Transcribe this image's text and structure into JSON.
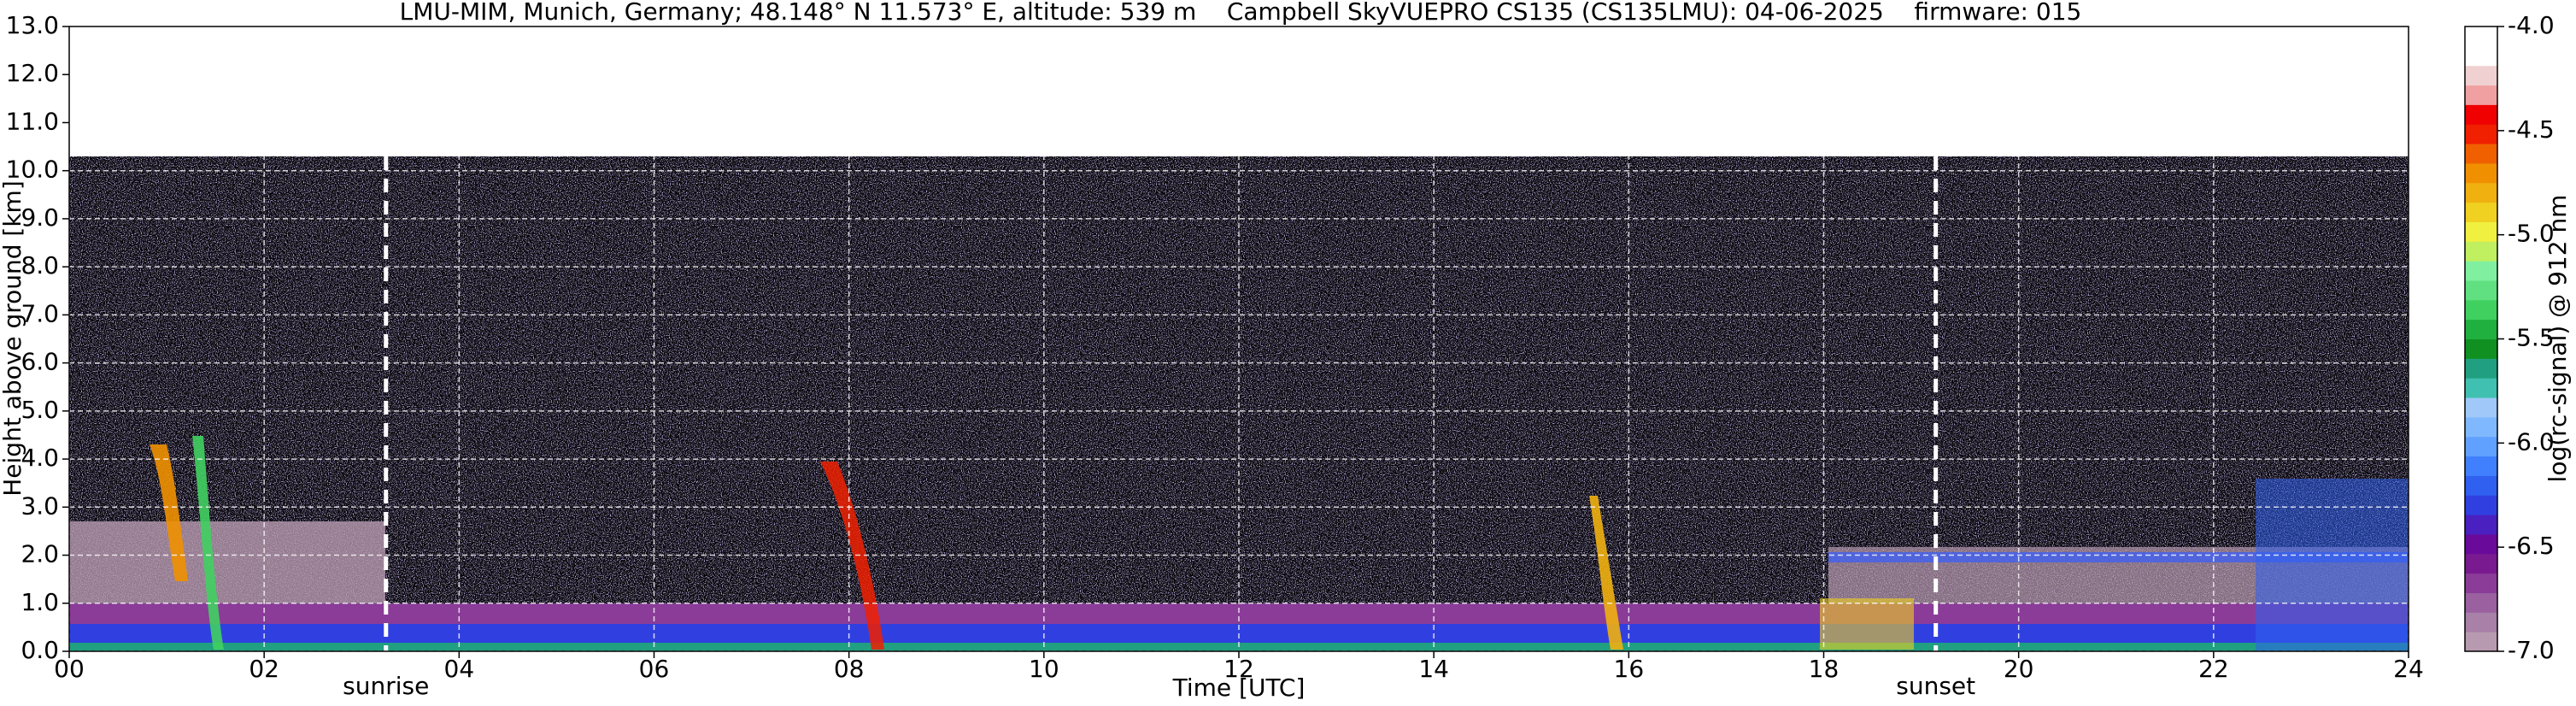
{
  "chart_data": {
    "type": "heatmap",
    "title": "LMU-MIM, Munich, Germany; 48.148° N 11.573° E, altitude: 539 m    Campbell SkyVUEPRO CS135 (CS135LMU): 04-06-2025    firmware: 015",
    "x_label": "Time [UTC]",
    "y_label": "Height above ground [km]",
    "xlim": [
      0,
      24
    ],
    "xticks": [
      {
        "value": 0,
        "label": "00"
      },
      {
        "value": 2,
        "label": "02"
      },
      {
        "value": 4,
        "label": "04"
      },
      {
        "value": 6,
        "label": "06"
      },
      {
        "value": 8,
        "label": "08"
      },
      {
        "value": 10,
        "label": "10"
      },
      {
        "value": 12,
        "label": "12"
      },
      {
        "value": 14,
        "label": "14"
      },
      {
        "value": 16,
        "label": "16"
      },
      {
        "value": 18,
        "label": "18"
      },
      {
        "value": 20,
        "label": "20"
      },
      {
        "value": 22,
        "label": "22"
      },
      {
        "value": 24,
        "label": "24"
      }
    ],
    "ylim": [
      0,
      13
    ],
    "yticks": [
      {
        "value": 0,
        "label": "0.0"
      },
      {
        "value": 1,
        "label": "1.0"
      },
      {
        "value": 2,
        "label": "2.0"
      },
      {
        "value": 3,
        "label": "3.0"
      },
      {
        "value": 4,
        "label": "4.0"
      },
      {
        "value": 5,
        "label": "5.0"
      },
      {
        "value": 6,
        "label": "6.0"
      },
      {
        "value": 7,
        "label": "7.0"
      },
      {
        "value": 8,
        "label": "8.0"
      },
      {
        "value": 9,
        "label": "9.0"
      },
      {
        "value": 10,
        "label": "10.0"
      },
      {
        "value": 11,
        "label": "11.0"
      },
      {
        "value": 12,
        "label": "12.0"
      },
      {
        "value": 13,
        "label": "13.0"
      }
    ],
    "grid": true,
    "annotations": [
      {
        "text": "sunrise",
        "x": 3.25
      },
      {
        "text": "sunset",
        "x": 19.15
      }
    ],
    "colorbar": {
      "label": "log(rc-signal) @ 912 nm",
      "lim": [
        -7,
        -4
      ],
      "ticks": [
        {
          "value": -7,
          "label": "-7.0"
        },
        -6.5,
        {
          "value": -6,
          "label": "-6.0"
        },
        -5.5,
        {
          "value": -5,
          "label": "-5.0"
        },
        -4.5,
        {
          "value": -4,
          "label": "-4.0"
        }
      ],
      "colors": [
        "#b89ab0",
        "#a880a8",
        "#9a60a0",
        "#8a3c98",
        "#7a1a90",
        "#6a0a9a",
        "#4a20c0",
        "#3040e0",
        "#3060f0",
        "#4080ff",
        "#60a0ff",
        "#80b8ff",
        "#a0c8f8",
        "#40c0b0",
        "#20a080",
        "#109020",
        "#20b040",
        "#40d060",
        "#60e080",
        "#80f0a0",
        "#c0f060",
        "#f0f040",
        "#f0d020",
        "#f0b010",
        "#f09000",
        "#f06000",
        "#f02000",
        "#f00000",
        "#f0a0a0",
        "#f0d0d0",
        "#ffffff",
        "#ffffff"
      ]
    }
  }
}
